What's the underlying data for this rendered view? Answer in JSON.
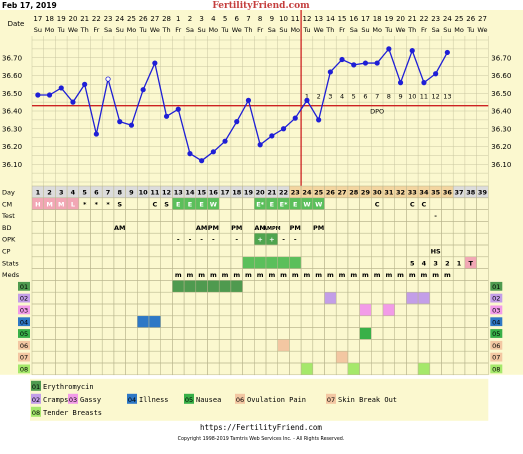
{
  "header": {
    "date_text": "Feb 17, 2019",
    "site_title": "FertilityFriend.com",
    "row_label": "Date"
  },
  "chart_data": {
    "type": "line",
    "title": "",
    "xlabel": "",
    "ylabel": "",
    "x": [
      1,
      2,
      3,
      4,
      5,
      6,
      7,
      8,
      9,
      10,
      11,
      12,
      13,
      14,
      15,
      16,
      17,
      18,
      19,
      20,
      21,
      22,
      23,
      24,
      25,
      26,
      27,
      28,
      29,
      30,
      31,
      32,
      33,
      34,
      35,
      36
    ],
    "date_numbers": [
      "17",
      "18",
      "19",
      "20",
      "21",
      "22",
      "23",
      "24",
      "25",
      "26",
      "27",
      "28",
      "1",
      "2",
      "3",
      "4",
      "5",
      "6",
      "7",
      "8",
      "9",
      "10",
      "11",
      "12",
      "13",
      "14",
      "15",
      "16",
      "17",
      "18",
      "19",
      "20",
      "21",
      "22",
      "23",
      "24",
      "25",
      "26",
      "27"
    ],
    "weekdays": [
      "Su",
      "Mo",
      "Tu",
      "We",
      "Th",
      "Fr",
      "Sa",
      "Su",
      "Mo",
      "Tu",
      "We",
      "Th",
      "Fr",
      "Sa",
      "Su",
      "Mo",
      "Tu",
      "We",
      "Th",
      "Fr",
      "Sa",
      "Su",
      "Mo",
      "Tu",
      "We",
      "Th",
      "Fr",
      "Sa",
      "Su",
      "Mo",
      "Tu",
      "We",
      "Th",
      "Fr",
      "Sa",
      "Su",
      "Mo",
      "Tu",
      "We"
    ],
    "series": [
      {
        "values": [
          36.49,
          36.49,
          36.53,
          36.45,
          36.55,
          36.27,
          36.58,
          36.34,
          36.32,
          36.52,
          36.67,
          36.37,
          36.41,
          36.16,
          36.12,
          36.17,
          36.23,
          36.34,
          36.46,
          36.21,
          36.26,
          36.3,
          36.36,
          36.46,
          36.35,
          36.62,
          36.69,
          36.66,
          36.67,
          36.67,
          36.75,
          36.56,
          36.74,
          36.56,
          36.61,
          36.73
        ],
        "open_points": [
          7
        ]
      }
    ],
    "y_ticks": [
      "36.70",
      "36.60",
      "36.50",
      "36.40",
      "36.30",
      "36.20",
      "36.10"
    ],
    "ylim": [
      36.0,
      36.8
    ],
    "coverline": 36.43,
    "ovulation_day": 23,
    "dpo_numbers": [
      "1",
      "2",
      "3",
      "4",
      "5",
      "6",
      "7",
      "8",
      "9",
      "10",
      "11",
      "12",
      "13"
    ],
    "dpo_label": "DPO",
    "colors": {
      "line": "#1f1fd6",
      "coverline": "#cc2222",
      "ovulation": "#cc2222",
      "plot_bg": "#fbf8cf",
      "grid": "#c9c6a0"
    }
  },
  "table": {
    "row_labels": {
      "day": "Day",
      "cm": "CM",
      "test": "Test",
      "bd": "BD",
      "opk": "OPK",
      "cp": "CP",
      "stats": "Stats",
      "meds": "Meds",
      "s01": "01",
      "s02": "02",
      "s03": "03",
      "s04": "04",
      "s05": "05",
      "s06": "06",
      "s07": "07",
      "s08": "08"
    },
    "days": [
      "1",
      "2",
      "3",
      "4",
      "5",
      "6",
      "7",
      "8",
      "9",
      "10",
      "11",
      "12",
      "13",
      "14",
      "15",
      "16",
      "17",
      "18",
      "19",
      "20",
      "21",
      "22",
      "23",
      "24",
      "25",
      "26",
      "27",
      "28",
      "29",
      "30",
      "31",
      "32",
      "33",
      "34",
      "35",
      "36",
      "37",
      "38",
      "39"
    ],
    "cm": [
      "H",
      "M",
      "M",
      "L",
      "*",
      "*",
      "*",
      "S",
      "",
      "",
      "C",
      "S",
      "E",
      "E",
      "E",
      "W",
      "",
      "",
      "",
      "E*",
      "E",
      "E*",
      "E",
      "W",
      "W",
      "",
      "",
      "",
      "",
      "C",
      "",
      "",
      "C",
      "C",
      "",
      "",
      "",
      "",
      ""
    ],
    "test": [
      "",
      "",
      "",
      "",
      "",
      "",
      "",
      "",
      "",
      "",
      "",
      "",
      "",
      "",
      "",
      "",
      "",
      "",
      "",
      "",
      "",
      "",
      "",
      "",
      "",
      "",
      "",
      "",
      "",
      "",
      "",
      "",
      "",
      "",
      "-",
      "",
      "",
      "",
      ""
    ],
    "bd": [
      "",
      "",
      "",
      "",
      "",
      "",
      "",
      "AM",
      "",
      "",
      "",
      "",
      "",
      "",
      "AM",
      "PM",
      "",
      "PM",
      "",
      "AM",
      "AMPM",
      "",
      "PM",
      "",
      "PM",
      "",
      "",
      "",
      "",
      "",
      "",
      "",
      "",
      "",
      "",
      "",
      "",
      "",
      ""
    ],
    "opk": [
      "",
      "",
      "",
      "",
      "",
      "",
      "",
      "",
      "",
      "",
      "",
      "",
      "-",
      "-",
      "-",
      "-",
      "",
      "-",
      "",
      "+",
      "+",
      "-",
      "-",
      "",
      "",
      "",
      "",
      "",
      "",
      "",
      "",
      "",
      "",
      "",
      "",
      "",
      "",
      "",
      ""
    ],
    "cp": [
      "",
      "",
      "",
      "",
      "",
      "",
      "",
      "",
      "",
      "",
      "",
      "",
      "",
      "",
      "",
      "",
      "",
      "",
      "",
      "",
      "",
      "",
      "",
      "",
      "",
      "",
      "",
      "",
      "",
      "",
      "",
      "",
      "",
      "",
      "HS",
      "",
      "",
      "",
      ""
    ],
    "stats": [
      "",
      "",
      "",
      "",
      "",
      "",
      "",
      "",
      "",
      "",
      "",
      "",
      "",
      "",
      "",
      "",
      "",
      "",
      "",
      "",
      "",
      "",
      "",
      "",
      "",
      "",
      "",
      "",
      "",
      "",
      "",
      "",
      "5",
      "4",
      "3",
      "2",
      "1",
      "T",
      ""
    ],
    "meds": [
      "",
      "",
      "",
      "",
      "",
      "",
      "",
      "",
      "",
      "",
      "",
      "",
      "m",
      "m",
      "m",
      "m",
      "m",
      "m",
      "m",
      "m",
      "m",
      "m",
      "m",
      "m",
      "m",
      "m",
      "m",
      "m",
      "m",
      "m",
      "m",
      "m",
      "m",
      "m",
      "m",
      "m",
      "",
      "",
      ""
    ],
    "symptom_cells": {
      "s01": [
        13,
        14,
        15,
        16,
        17,
        18
      ],
      "s02": [
        26,
        33,
        34
      ],
      "s03": [
        29,
        31
      ],
      "s04": [
        10,
        11
      ],
      "s05": [
        29
      ],
      "s06": [
        22
      ],
      "s07": [
        27
      ],
      "s08": [
        24,
        28,
        34
      ]
    }
  },
  "legend": [
    {
      "code": "01",
      "label": "Erythromycin",
      "color": "#4f9a4f"
    },
    {
      "code": "02",
      "label": "Cramps",
      "color": "#c39ee8"
    },
    {
      "code": "03",
      "label": "Gassy",
      "color": "#f29be8"
    },
    {
      "code": "04",
      "label": "Illness",
      "color": "#2e78c6"
    },
    {
      "code": "05",
      "label": "Nausea",
      "color": "#38b048"
    },
    {
      "code": "06",
      "label": "Ovulation Pain",
      "color": "#f3c7a2"
    },
    {
      "code": "07",
      "label": "Skin Break Out",
      "color": "#f3c7a2"
    },
    {
      "code": "08",
      "label": "Tender Breasts",
      "color": "#a5e86b"
    }
  ],
  "footer": {
    "url": "https://FertilityFriend.com",
    "copyright": "Copyright 1998-2019 Tamtris Web Services Inc. - All Rights Reserved."
  }
}
